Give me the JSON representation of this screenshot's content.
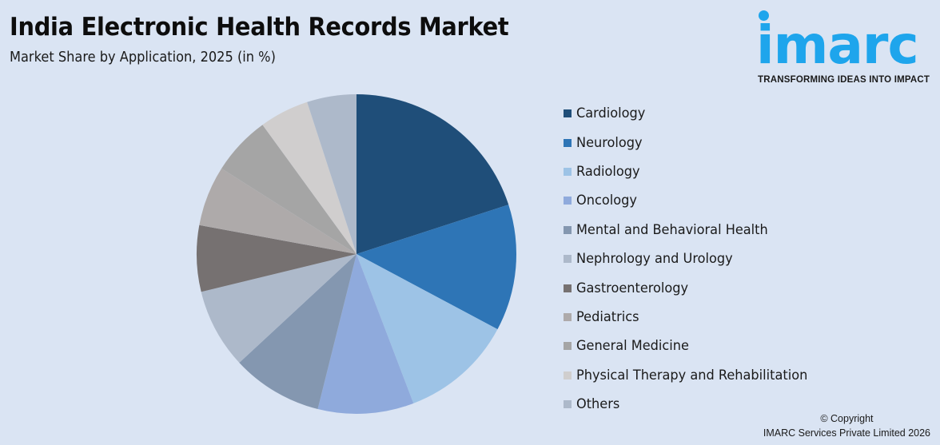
{
  "header": {
    "title": "India Electronic Health Records Market",
    "subtitle": "Market Share by Application, 2025 (in %)"
  },
  "logo": {
    "word": "imarc",
    "tagline": "TRANSFORMING IDEAS INTO IMPACT",
    "color": "#1ea5ec"
  },
  "footer": {
    "line1": "© Copyright",
    "line2": "IMARC Services Private Limited 2026"
  },
  "chart_data": {
    "type": "pie",
    "title": "India Electronic Health Records Market",
    "subtitle": "Market Share by Application, 2025 (in %)",
    "legend_position": "right",
    "start_angle": "12 o'clock, clockwise",
    "categories": [
      "Cardiology",
      "Neurology",
      "Radiology",
      "Oncology",
      "Mental and Behavioral Health",
      "Nephrology and Urology",
      "Gastroenterology",
      "Pediatrics",
      "General Medicine",
      "Physical Therapy and Rehabilitation",
      "Others"
    ],
    "values": [
      20.0,
      12.8,
      11.4,
      9.7,
      9.2,
      8.1,
      6.7,
      6.1,
      6.0,
      5.0,
      5.0
    ],
    "colors": [
      "#1f4e79",
      "#2e75b6",
      "#9dc3e6",
      "#8faadc",
      "#8497b0",
      "#adb9ca",
      "#767171",
      "#aeaaaa",
      "#a5a5a5",
      "#d0cece",
      "#adb9ca"
    ]
  }
}
